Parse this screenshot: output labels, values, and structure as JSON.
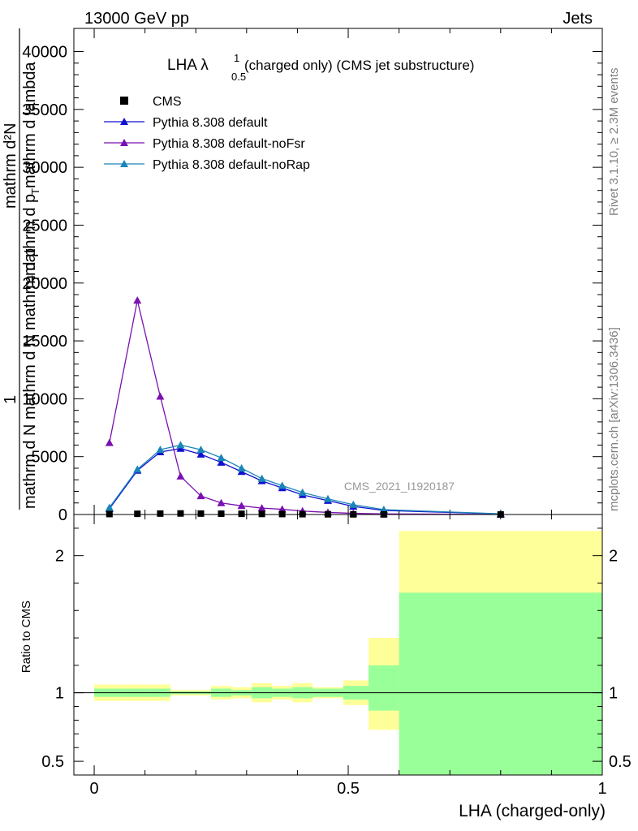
{
  "header": {
    "left": "13000 GeV pp",
    "right": "Jets"
  },
  "side": {
    "rivet": "Rivet 3.1.10, ≥ 2.3M events",
    "mcplots": "mcplots.cern.ch [arXiv:1306.3436]"
  },
  "chart_data": [
    {
      "type": "line",
      "title": "LHA λ",
      "title_sup": "1",
      "title_sub": "0.5",
      "title_rest": "(charged only) (CMS jet substructure)",
      "watermark": "CMS_2021_I1920187",
      "ylabel": {
        "numerator": "1",
        "denominator": "mathrm d N mathrm d N mathrm d p",
        "den_sub": "T",
        "inner_numerator": "mathrm d²N",
        "inner_denominator": "mathrm d p",
        "inner_den_sub": "T",
        "inner_den_rest": "mathrm d lambda"
      },
      "xlim": [
        -0.04,
        1.0
      ],
      "ylim": [
        0,
        42000
      ],
      "yticks": [
        0,
        5000,
        10000,
        15000,
        20000,
        25000,
        30000,
        35000,
        40000
      ],
      "ytick_labels": [
        "0",
        "5000",
        "10000",
        "15000",
        "20000",
        "25000",
        "30000",
        "35000",
        "40000"
      ],
      "legend_position": "top-left",
      "series": [
        {
          "name": "CMS",
          "color": "#000000",
          "marker": "square",
          "x": [
            0.03,
            0.085,
            0.13,
            0.17,
            0.21,
            0.25,
            0.29,
            0.33,
            0.37,
            0.41,
            0.46,
            0.51,
            0.57,
            0.8
          ],
          "y": [
            40,
            60,
            80,
            90,
            80,
            70,
            60,
            50,
            40,
            30,
            20,
            15,
            10,
            5
          ]
        },
        {
          "name": "Pythia 8.308 default",
          "color": "#1010d0",
          "marker": "triangle",
          "x": [
            0.03,
            0.085,
            0.13,
            0.17,
            0.21,
            0.25,
            0.29,
            0.33,
            0.37,
            0.41,
            0.46,
            0.51,
            0.57,
            0.8
          ],
          "y": [
            500,
            3800,
            5400,
            5700,
            5200,
            4500,
            3700,
            2900,
            2300,
            1700,
            1200,
            700,
            350,
            50
          ]
        },
        {
          "name": "Pythia 8.308 default-noFsr",
          "color": "#7b10b0",
          "marker": "triangle",
          "x": [
            0.03,
            0.085,
            0.13,
            0.17,
            0.21,
            0.25,
            0.29,
            0.33,
            0.37,
            0.41,
            0.46,
            0.51,
            0.57,
            0.8
          ],
          "y": [
            6200,
            18500,
            10200,
            3300,
            1600,
            1000,
            750,
            550,
            450,
            300,
            180,
            100,
            50,
            10
          ]
        },
        {
          "name": "Pythia 8.308 default-noRap",
          "color": "#1a85b8",
          "marker": "triangle",
          "x": [
            0.03,
            0.085,
            0.13,
            0.17,
            0.21,
            0.25,
            0.29,
            0.33,
            0.37,
            0.41,
            0.46,
            0.51,
            0.57,
            0.8
          ],
          "y": [
            600,
            3900,
            5600,
            6000,
            5600,
            4900,
            4000,
            3100,
            2500,
            1900,
            1350,
            850,
            420,
            60
          ]
        }
      ]
    },
    {
      "type": "area",
      "ylabel": "Ratio to CMS",
      "xlabel": "LHA (charged-only)",
      "xlim": [
        -0.04,
        1.0
      ],
      "ylim": [
        0.4,
        2.3
      ],
      "xticks": [
        0,
        0.5,
        1
      ],
      "xtick_labels": [
        "0",
        "0.5",
        "1"
      ],
      "yticks": [
        0.5,
        1,
        2
      ],
      "ytick_labels": [
        "0.5",
        "1",
        "2"
      ],
      "reference": 1,
      "bands": {
        "edges": [
          0,
          0.06,
          0.11,
          0.15,
          0.19,
          0.23,
          0.27,
          0.31,
          0.35,
          0.39,
          0.43,
          0.49,
          0.54,
          0.6,
          1.0
        ],
        "yellow_low": [
          0.94,
          0.94,
          0.94,
          0.98,
          0.98,
          0.95,
          0.96,
          0.93,
          0.95,
          0.93,
          0.96,
          0.91,
          0.73,
          0.4
        ],
        "yellow_high": [
          1.06,
          1.06,
          1.06,
          1.02,
          1.02,
          1.05,
          1.04,
          1.07,
          1.05,
          1.07,
          1.04,
          1.09,
          1.4,
          2.18
        ],
        "green_low": [
          0.97,
          0.97,
          0.97,
          0.99,
          0.99,
          0.97,
          0.98,
          0.96,
          0.97,
          0.96,
          0.97,
          0.95,
          0.87,
          0.4
        ],
        "green_high": [
          1.03,
          1.03,
          1.03,
          1.01,
          1.01,
          1.03,
          1.02,
          1.04,
          1.03,
          1.04,
          1.03,
          1.05,
          1.2,
          1.73
        ],
        "colors": {
          "outer": "#ffff99",
          "inner": "#99ff99"
        }
      }
    }
  ]
}
